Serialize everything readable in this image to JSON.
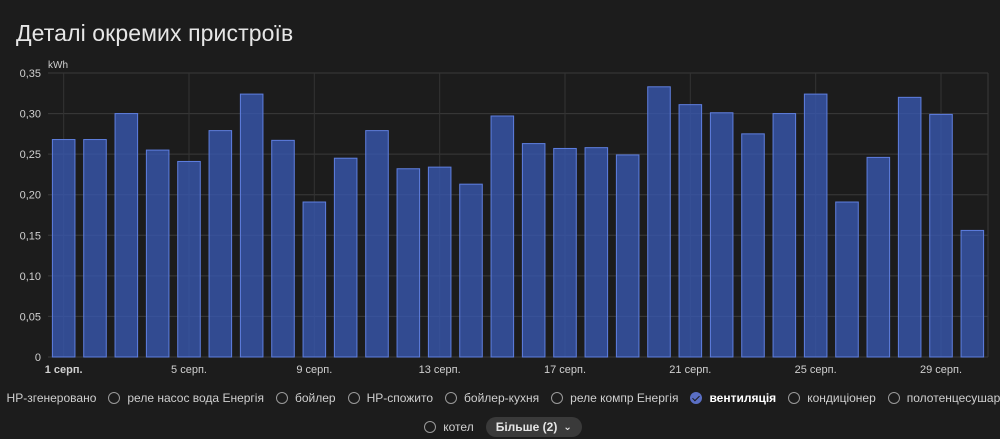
{
  "card": {
    "title": "Деталі окремих пристроїв"
  },
  "chart_data": {
    "type": "bar",
    "ylabel": "kWh",
    "ylim": [
      0,
      0.35
    ],
    "yticks": [
      "0",
      "0,05",
      "0,10",
      "0,15",
      "0,20",
      "0,25",
      "0,30",
      "0,35"
    ],
    "xtick_labels": [
      {
        "index": 0,
        "label": "1 серп.",
        "bold": true
      },
      {
        "index": 4,
        "label": "5 серп."
      },
      {
        "index": 8,
        "label": "9 серп."
      },
      {
        "index": 12,
        "label": "13 серп."
      },
      {
        "index": 16,
        "label": "17 серп."
      },
      {
        "index": 20,
        "label": "21 серп."
      },
      {
        "index": 24,
        "label": "25 серп."
      },
      {
        "index": 28,
        "label": "29 серп."
      }
    ],
    "categories": [
      "1",
      "2",
      "3",
      "4",
      "5",
      "6",
      "7",
      "8",
      "9",
      "10",
      "11",
      "12",
      "13",
      "14",
      "15",
      "16",
      "17",
      "18",
      "19",
      "20",
      "21",
      "22",
      "23",
      "24",
      "25",
      "26",
      "27",
      "28",
      "29",
      "30"
    ],
    "series": [
      {
        "color": "#3a5bb8",
        "values": [
          0.268,
          0.268,
          0.3,
          0.255,
          0.241,
          0.279,
          0.324,
          0.267,
          0.191,
          0.245,
          0.279,
          0.232,
          0.234,
          0.213,
          0.297,
          0.263,
          0.257,
          0.258,
          0.249,
          0.333,
          0.311,
          0.301,
          0.275,
          0.3,
          0.324,
          0.191,
          0.246,
          0.32,
          0.299,
          0.156
        ]
      }
    ],
    "grid": true
  },
  "legend": {
    "row1": [
      {
        "label": "HP-згенеровано",
        "active": false
      },
      {
        "label": "реле насос вода Енергія",
        "active": false
      },
      {
        "label": "бойлер",
        "active": false
      },
      {
        "label": "HP-спожито",
        "active": false
      },
      {
        "label": "бойлер-кухня",
        "active": false
      },
      {
        "label": "реле компр Енергія",
        "active": false
      },
      {
        "label": "вентиляція",
        "active": true
      },
      {
        "label": "кондиціонер",
        "active": false
      },
      {
        "label": "полотенцесушарка",
        "active": false
      }
    ],
    "row2": [
      {
        "label": "котел",
        "active": false
      }
    ],
    "more_label": "Більше (2)"
  }
}
